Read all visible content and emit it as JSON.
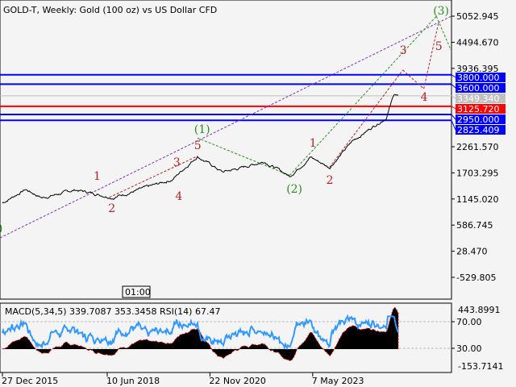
{
  "title": "GOLD-T, Weekly:  Gold (100 oz) vs US Dollar CFD",
  "indicator_label": "MACD(5,34,5) 339.7087 353.3458 RSI(14) 67.47",
  "time_marker": "01:00",
  "colors": {
    "level_blue": "#0000ff",
    "level_red": "#ff0000",
    "current": "#c0c0c0",
    "wave_green": "#2e8b22",
    "wave_red": "#b22222",
    "rsi": "#3399ff",
    "macd_signal": "#ff0000"
  },
  "chart_data": {
    "type": "line",
    "title": "GOLD-T, Weekly:  Gold (100 oz) vs US Dollar CFD",
    "y_ticks": [
      "5052.945",
      "4494.670",
      "3936.395",
      "2261.570",
      "1703.295",
      "1145.020",
      "586.745",
      "28.470",
      "-529.805"
    ],
    "x_ticks": [
      "27 Dec 2015",
      "10 Jun 2018",
      "22 Nov 2020",
      "7 May 2023"
    ],
    "ylim": [
      -800,
      5300
    ],
    "price_anchors": [
      [
        2015.95,
        1060
      ],
      [
        2016.5,
        1350
      ],
      [
        2016.9,
        1170
      ],
      [
        2017.7,
        1340
      ],
      [
        2018.6,
        1180
      ],
      [
        2019.5,
        1420
      ],
      [
        2020.0,
        1560
      ],
      [
        2020.6,
        2060
      ],
      [
        2021.2,
        1720
      ],
      [
        2021.6,
        1800
      ],
      [
        2022.2,
        1950
      ],
      [
        2022.8,
        1630
      ],
      [
        2023.3,
        2040
      ],
      [
        2023.75,
        1820
      ],
      [
        2024.0,
        2070
      ],
      [
        2024.3,
        2380
      ],
      [
        2024.8,
        2700
      ],
      [
        2025.1,
        2880
      ],
      [
        2025.3,
        3400
      ],
      [
        2025.4,
        3349.34
      ]
    ],
    "levels": [
      {
        "price": 3800,
        "label": "3800.000",
        "color": "#0000ff"
      },
      {
        "price": 3600,
        "label": "3600.000",
        "color": "#0000ff"
      },
      {
        "price": 3349.34,
        "label": "3349.340",
        "color": "#c0c0c0"
      },
      {
        "price": 3125.72,
        "label": "3125.720",
        "color": "#ff0000"
      },
      {
        "price": 2950,
        "label": "2950.000",
        "color": "#0000ff"
      },
      {
        "price": 2825.409,
        "label": "2825.409",
        "color": "#0000ff"
      }
    ],
    "waves": [
      {
        "t": "(1)",
        "x": 2020.6,
        "p": 2641,
        "c": "#2e8b22"
      },
      {
        "t": "5",
        "x": 2020.6,
        "p": 2296,
        "c": "#b22222"
      },
      {
        "t": "1",
        "x": 2018.2,
        "p": 1641,
        "c": "#b22222"
      },
      {
        "t": "2",
        "x": 2018.55,
        "p": 951,
        "c": "#b22222"
      },
      {
        "t": "3",
        "x": 2020.1,
        "p": 1934,
        "c": "#b22222"
      },
      {
        "t": "4",
        "x": 2020.15,
        "p": 1210,
        "c": "#b22222"
      },
      {
        "t": "(2)",
        "x": 2022.8,
        "p": 1366,
        "c": "#2e8b22"
      },
      {
        "t": "1",
        "x": 2023.35,
        "p": 2347,
        "c": "#b22222"
      },
      {
        "t": "2",
        "x": 2023.75,
        "p": 1555,
        "c": "#b22222"
      },
      {
        "t": "(3)",
        "x": 2026.3,
        "p": 5173,
        "c": "#2e8b22"
      },
      {
        "t": "3",
        "x": 2025.5,
        "p": 4329,
        "c": "#b22222"
      },
      {
        "t": "4",
        "x": 2026.0,
        "p": 3330,
        "c": "#b22222"
      },
      {
        "t": "5",
        "x": 2026.35,
        "p": 4415,
        "c": "#b22222"
      }
    ],
    "rsi_levels": [
      "70.00",
      "30.00"
    ],
    "macd_ticks": [
      "443.8991",
      "-153.7141"
    ],
    "rsi_value": 67.47,
    "macd_value": 339.7087,
    "signal_value": 353.3458
  }
}
